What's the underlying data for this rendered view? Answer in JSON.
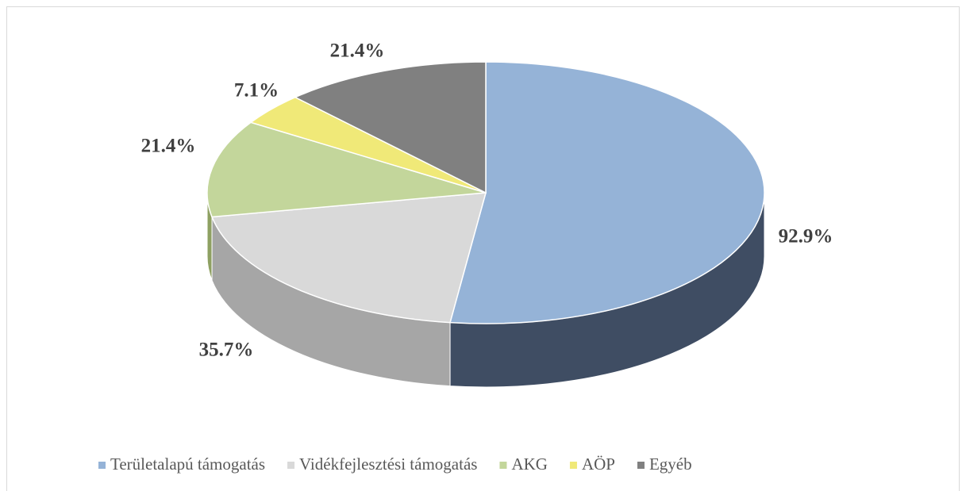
{
  "chart_data": {
    "type": "pie3d",
    "categories": [
      "Területalapú támogatás",
      "Vidékfejlesztési támogatás",
      "AKG",
      "AÖP",
      "Egyéb"
    ],
    "values": [
      92.9,
      35.7,
      21.4,
      7.1,
      21.4
    ],
    "value_labels": [
      "92.9%",
      "35.7%",
      "21.4%",
      "7.1%",
      "21.4%"
    ],
    "colors": [
      "#95b3d7",
      "#d9d9d9",
      "#c3d69b",
      "#f0e978",
      "#808080"
    ],
    "side_colors": [
      "#3f4d63",
      "#a6a6a6",
      "#8ea062",
      "#b8b050",
      "#5a5a5a"
    ],
    "legend": "bottom"
  }
}
